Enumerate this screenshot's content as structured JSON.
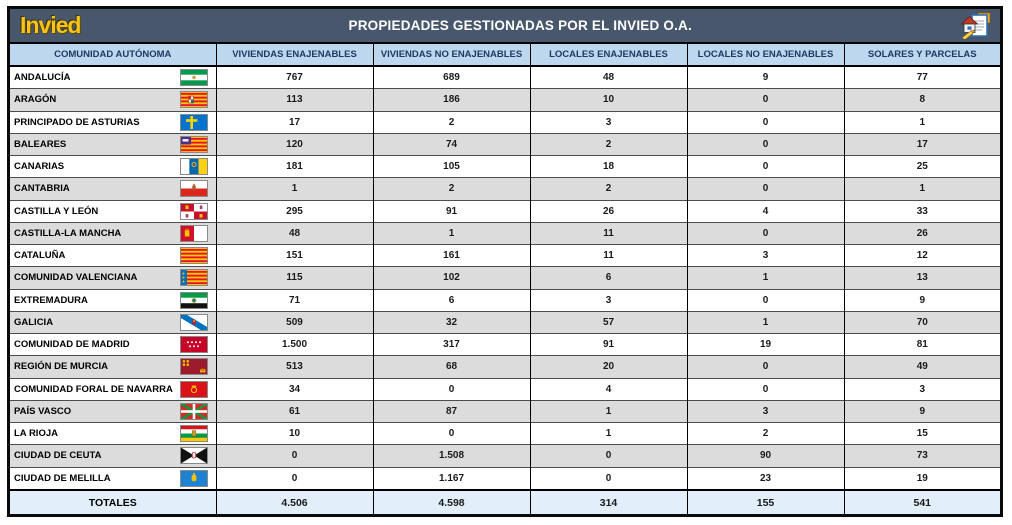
{
  "header": {
    "logo_text": "Invied",
    "title": "PROPIEDADES GESTIONADAS POR EL INVIED O.A.",
    "corner_icon": "house-clipboard-pencil-icon"
  },
  "colors": {
    "title_bar": "#49576C",
    "header_bg": "#BDD7EE",
    "header_text": "#1F3864",
    "row_alt_bg": "#DCDCDC",
    "totals_bg": "#E2EEF9",
    "logo_gold": "#F6C41C"
  },
  "table": {
    "columns": [
      "COMUNIDAD AUTÓNOMA",
      "VIVIENDAS ENAJENABLES",
      "VIVIENDAS NO ENAJENABLES",
      "LOCALES ENAJENABLES",
      "LOCALES NO ENAJENABLES",
      "SOLARES Y PARCELAS"
    ],
    "rows": [
      {
        "name": "ANDALUCÍA",
        "flag": "andalucia",
        "values": [
          "767",
          "689",
          "48",
          "9",
          "77"
        ]
      },
      {
        "name": "ARAGÓN",
        "flag": "aragon",
        "values": [
          "113",
          "186",
          "10",
          "0",
          "8"
        ]
      },
      {
        "name": "PRINCIPADO DE ASTURIAS",
        "flag": "asturias",
        "values": [
          "17",
          "2",
          "3",
          "0",
          "1"
        ]
      },
      {
        "name": "BALEARES",
        "flag": "baleares",
        "values": [
          "120",
          "74",
          "2",
          "0",
          "17"
        ]
      },
      {
        "name": "CANARIAS",
        "flag": "canarias",
        "values": [
          "181",
          "105",
          "18",
          "0",
          "25"
        ]
      },
      {
        "name": "CANTABRIA",
        "flag": "cantabria",
        "values": [
          "1",
          "2",
          "2",
          "0",
          "1"
        ]
      },
      {
        "name": "CASTILLA Y LEÓN",
        "flag": "castilla-leon",
        "values": [
          "295",
          "91",
          "26",
          "4",
          "33"
        ]
      },
      {
        "name": "CASTILLA-LA MANCHA",
        "flag": "castilla-la-mancha",
        "values": [
          "48",
          "1",
          "11",
          "0",
          "26"
        ]
      },
      {
        "name": "CATALUÑA",
        "flag": "cataluna",
        "values": [
          "151",
          "161",
          "11",
          "3",
          "12"
        ]
      },
      {
        "name": "COMUNIDAD VALENCIANA",
        "flag": "valencia",
        "values": [
          "115",
          "102",
          "6",
          "1",
          "13"
        ]
      },
      {
        "name": "EXTREMADURA",
        "flag": "extremadura",
        "values": [
          "71",
          "6",
          "3",
          "0",
          "9"
        ]
      },
      {
        "name": "GALICIA",
        "flag": "galicia",
        "values": [
          "509",
          "32",
          "57",
          "1",
          "70"
        ]
      },
      {
        "name": "COMUNIDAD DE MADRID",
        "flag": "madrid",
        "values": [
          "1.500",
          "317",
          "91",
          "19",
          "81"
        ]
      },
      {
        "name": "REGIÓN DE MURCIA",
        "flag": "murcia",
        "values": [
          "513",
          "68",
          "20",
          "0",
          "49"
        ]
      },
      {
        "name": "COMUNIDAD FORAL DE NAVARRA",
        "flag": "navarra",
        "values": [
          "34",
          "0",
          "4",
          "0",
          "3"
        ]
      },
      {
        "name": "PAÍS VASCO",
        "flag": "pais-vasco",
        "values": [
          "61",
          "87",
          "1",
          "3",
          "9"
        ]
      },
      {
        "name": "LA RIOJA",
        "flag": "la-rioja",
        "values": [
          "10",
          "0",
          "1",
          "2",
          "15"
        ]
      },
      {
        "name": "CIUDAD DE CEUTA",
        "flag": "ceuta",
        "values": [
          "0",
          "1.508",
          "0",
          "90",
          "73"
        ]
      },
      {
        "name": "CIUDAD DE MELILLA",
        "flag": "melilla",
        "values": [
          "0",
          "1.167",
          "0",
          "23",
          "19"
        ]
      }
    ],
    "totals": {
      "label": "TOTALES",
      "values": [
        "4.506",
        "4.598",
        "314",
        "155",
        "541"
      ]
    }
  }
}
